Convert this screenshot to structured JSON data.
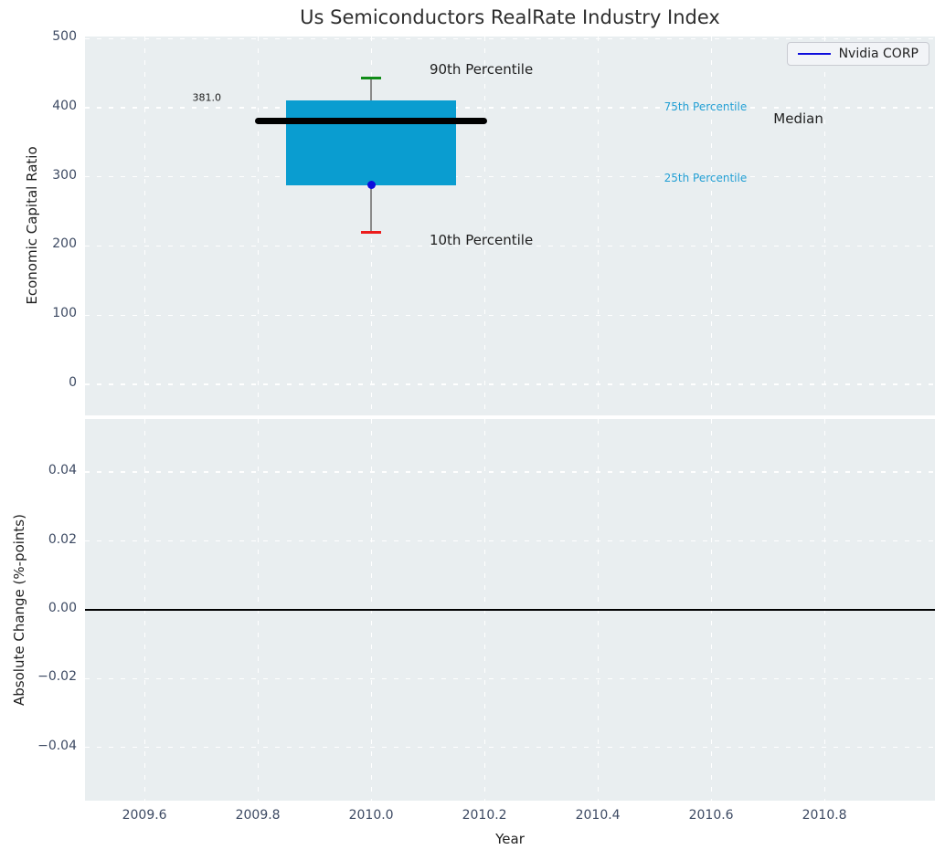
{
  "title": "Us Semiconductors RealRate Industry Index",
  "legend": {
    "label": "Nvidia CORP",
    "line_color": "#0d0ddc"
  },
  "chart_data": [
    {
      "type": "box",
      "title": "Us Semiconductors RealRate Industry Index",
      "ylabel": "Economic Capital Ratio",
      "xlim": [
        2009.495,
        2010.995
      ],
      "ylim": [
        -45,
        503
      ],
      "yticks": [
        0,
        100,
        200,
        300,
        400,
        500
      ],
      "yticklabels": [
        "0",
        "100",
        "200",
        "300",
        "400",
        "500"
      ],
      "xticks": [
        2009.6,
        2009.8,
        2010.0,
        2010.2,
        2010.4,
        2010.6,
        2010.8
      ],
      "xticklabels": [],
      "grid": true,
      "background": "#e9eef0",
      "box": {
        "x": 2010.0,
        "p10": 220,
        "p25": 288,
        "median": 381.0,
        "p75": 410,
        "p90": 443,
        "box_halfwidth": 0.15,
        "median_halfwidth": 0.205,
        "cap_halfwidth": 0.018,
        "colors": {
          "box": "#0a9dd0",
          "median": "#000000",
          "whisker": "#8a8a8a",
          "p90_cap": "#108c18",
          "p10_cap": "#ec1c1c",
          "company": "#0d0ddc"
        },
        "company": {
          "name": "Nvidia CORP",
          "x": 2010.0,
          "value": 288
        }
      },
      "annotations": [
        {
          "text": "381.0",
          "x": 2009.71,
          "y": 414,
          "size": 11,
          "color": "#1a1a1a",
          "align": "center",
          "name": "median-value-label"
        },
        {
          "text": "90th Percentile",
          "x": 2010.103,
          "y": 455,
          "size": 15,
          "color": "#1f1f1f",
          "align": "left",
          "name": "p90-label"
        },
        {
          "text": "10th Percentile",
          "x": 2010.103,
          "y": 208,
          "size": 15,
          "color": "#1f1f1f",
          "align": "left",
          "name": "p10-label"
        },
        {
          "text": "75th Percentile",
          "x": 2010.517,
          "y": 401,
          "size": 12,
          "color": "#229fd4",
          "align": "left",
          "name": "p75-label"
        },
        {
          "text": "25th Percentile",
          "x": 2010.517,
          "y": 298,
          "size": 12,
          "color": "#229fd4",
          "align": "left",
          "name": "p25-label"
        },
        {
          "text": "Median",
          "x": 2010.71,
          "y": 384,
          "size": 15,
          "color": "#1f1f1f",
          "align": "left",
          "name": "median-label"
        }
      ]
    },
    {
      "type": "line",
      "ylabel": "Absolute Change (%-points)",
      "xlabel": "Year",
      "xlim": [
        2009.495,
        2010.995
      ],
      "ylim": [
        -0.0554,
        0.0554
      ],
      "yticks": [
        -0.04,
        -0.02,
        0,
        0.02,
        0.04
      ],
      "yticklabels": [
        "−0.04",
        "−0.02",
        "0.00",
        "0.02",
        "0.04"
      ],
      "xticks": [
        2009.6,
        2009.8,
        2010.0,
        2010.2,
        2010.4,
        2010.6,
        2010.8
      ],
      "xticklabels": [
        "2009.6",
        "2009.8",
        "2010.0",
        "2010.2",
        "2010.4",
        "2010.6",
        "2010.8"
      ],
      "grid": true,
      "background": "#e9eef0",
      "zero_line": true,
      "series": []
    }
  ]
}
